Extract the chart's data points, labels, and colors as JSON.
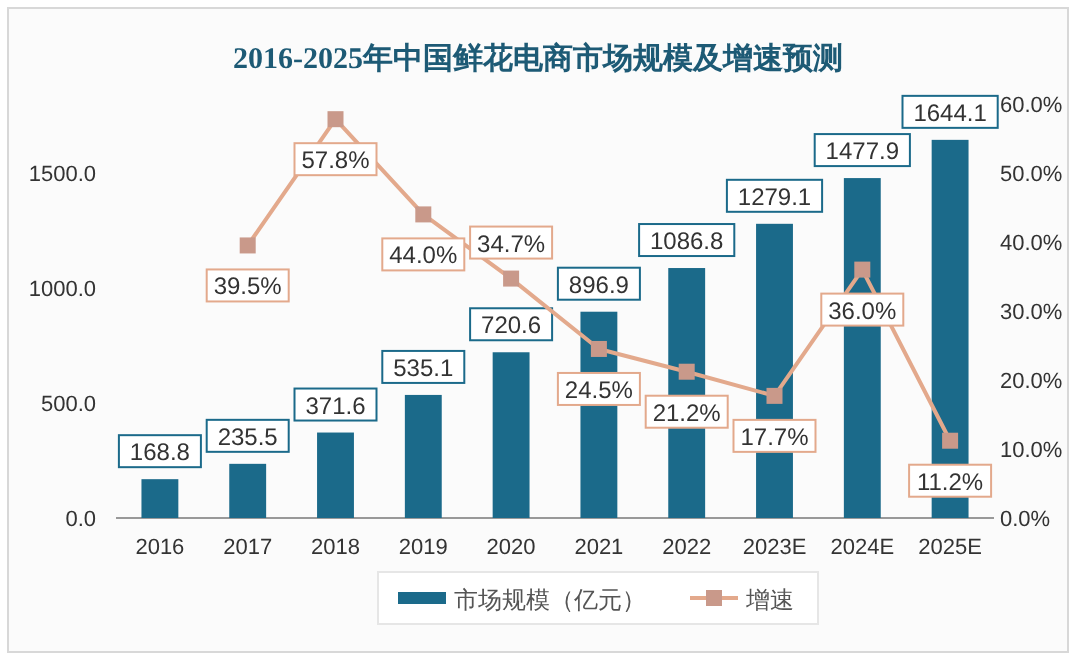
{
  "chart_data": {
    "type": "bar",
    "title": "2016-2025年中国鲜花电商市场规模及增速预测",
    "categories": [
      "2016",
      "2017",
      "2018",
      "2019",
      "2020",
      "2021",
      "2022",
      "2023E",
      "2024E",
      "2025E"
    ],
    "series": [
      {
        "name": "市场规模（亿元）",
        "color": "#1b6a8a",
        "values": [
          168.8,
          235.5,
          371.6,
          535.1,
          720.6,
          896.9,
          1086.8,
          1279.1,
          1477.9,
          1644.1
        ],
        "value_labels": [
          "168.8",
          "235.5",
          "371.6",
          "535.1",
          "720.6",
          "896.9",
          "1086.8",
          "1279.1",
          "1477.9",
          "1644.1"
        ]
      },
      {
        "name": "增速",
        "type": "line",
        "axis": "y2",
        "color": "#e3a98c",
        "marker": "square",
        "values": [
          null,
          39.5,
          57.8,
          44.0,
          34.7,
          24.5,
          21.2,
          17.7,
          36.0,
          11.2
        ],
        "value_labels": [
          null,
          "39.5%",
          "57.8%",
          "44.0%",
          "34.7%",
          "24.5%",
          "21.2%",
          "17.7%",
          "36.0%",
          "11.2%"
        ]
      }
    ],
    "ylim": [
      0,
      1800
    ],
    "yticks": [
      {
        "value": 0,
        "label": "0.0"
      },
      {
        "value": 500,
        "label": "500.0"
      },
      {
        "value": 1000,
        "label": "1000.0"
      },
      {
        "value": 1500,
        "label": "1500.0"
      }
    ],
    "y2lim": [
      0,
      60
    ],
    "y2ticks": [
      {
        "value": 0,
        "label": "0.0%"
      },
      {
        "value": 10,
        "label": "10.0%"
      },
      {
        "value": 20,
        "label": "20.0%"
      },
      {
        "value": 30,
        "label": "30.0%"
      },
      {
        "value": 40,
        "label": "40.0%"
      },
      {
        "value": 50,
        "label": "50.0%"
      },
      {
        "value": 60,
        "label": "60.0%"
      }
    ],
    "legend": "bottom",
    "grid": false
  }
}
